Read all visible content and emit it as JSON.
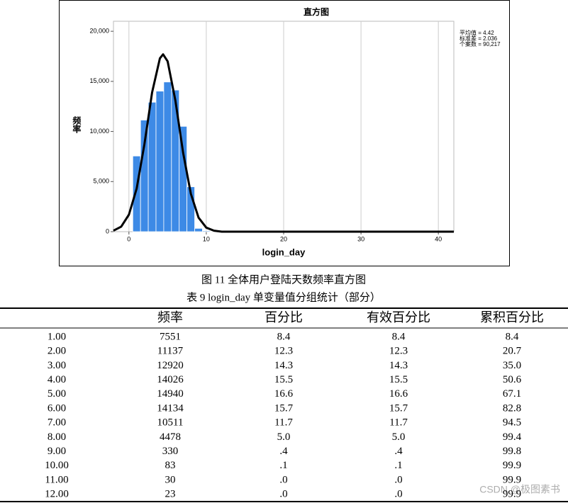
{
  "chart_data": {
    "type": "histogram",
    "title": "直方图",
    "xlabel": "login_day",
    "ylabel": "频率",
    "bins": [
      0.5,
      1.5,
      2.5,
      3.5,
      4.5,
      5.5,
      6.5,
      7.5,
      8.5,
      9.5,
      10.5,
      11.5,
      12.5
    ],
    "values": [
      7551,
      11137,
      12920,
      14026,
      14940,
      14134,
      10511,
      4478,
      330,
      83,
      30,
      23
    ],
    "color": "#3d8ae6",
    "curve": {
      "color": "#000000",
      "x": [
        -2,
        -1,
        0,
        1,
        2,
        3,
        4,
        4.42,
        5,
        6,
        7,
        8,
        9,
        10,
        11,
        12,
        15,
        42
      ],
      "y": [
        100,
        500,
        1700,
        4300,
        8700,
        13900,
        17300,
        17700,
        17000,
        13100,
        7900,
        3800,
        1400,
        400,
        100,
        0,
        0,
        0
      ]
    },
    "annotations": [
      "平均值 = 4.42",
      "标准差 = 2.036",
      "个案数 = 90,217"
    ],
    "xlim": [
      -2,
      42
    ],
    "xticks": [
      0,
      10,
      20,
      30,
      40
    ],
    "ylim": [
      0,
      21000
    ],
    "yticks": [
      0,
      {
        "value": 5000,
        "label": "5,000"
      },
      {
        "value": 10000,
        "label": "10,000"
      },
      {
        "value": 15000,
        "label": "15,000"
      },
      {
        "value": 20000,
        "label": "20,000"
      }
    ],
    "grid": "x"
  },
  "figure_caption": "图 11  全体用户登陆天数频率直方图",
  "table_caption": "表 9  login_day 单变量值分组统计（部分）",
  "table": {
    "columns": [
      "频率",
      "百分比",
      "有效百分比",
      "累积百分比"
    ],
    "rows": [
      [
        "1.00",
        "7551",
        "8.4",
        "8.4",
        "8.4"
      ],
      [
        "2.00",
        "11137",
        "12.3",
        "12.3",
        "20.7"
      ],
      [
        "3.00",
        "12920",
        "14.3",
        "14.3",
        "35.0"
      ],
      [
        "4.00",
        "14026",
        "15.5",
        "15.5",
        "50.6"
      ],
      [
        "5.00",
        "14940",
        "16.6",
        "16.6",
        "67.1"
      ],
      [
        "6.00",
        "14134",
        "15.7",
        "15.7",
        "82.8"
      ],
      [
        "7.00",
        "10511",
        "11.7",
        "11.7",
        "94.5"
      ],
      [
        "8.00",
        "4478",
        "5.0",
        "5.0",
        "99.4"
      ],
      [
        "9.00",
        "330",
        ".4",
        ".4",
        "99.8"
      ],
      [
        "10.00",
        "83",
        ".1",
        ".1",
        "99.9"
      ],
      [
        "11.00",
        "30",
        ".0",
        ".0",
        "99.9"
      ],
      [
        "12.00",
        "23",
        ".0",
        ".0",
        "99.9"
      ]
    ]
  },
  "watermark": "CSDN @极图素书"
}
